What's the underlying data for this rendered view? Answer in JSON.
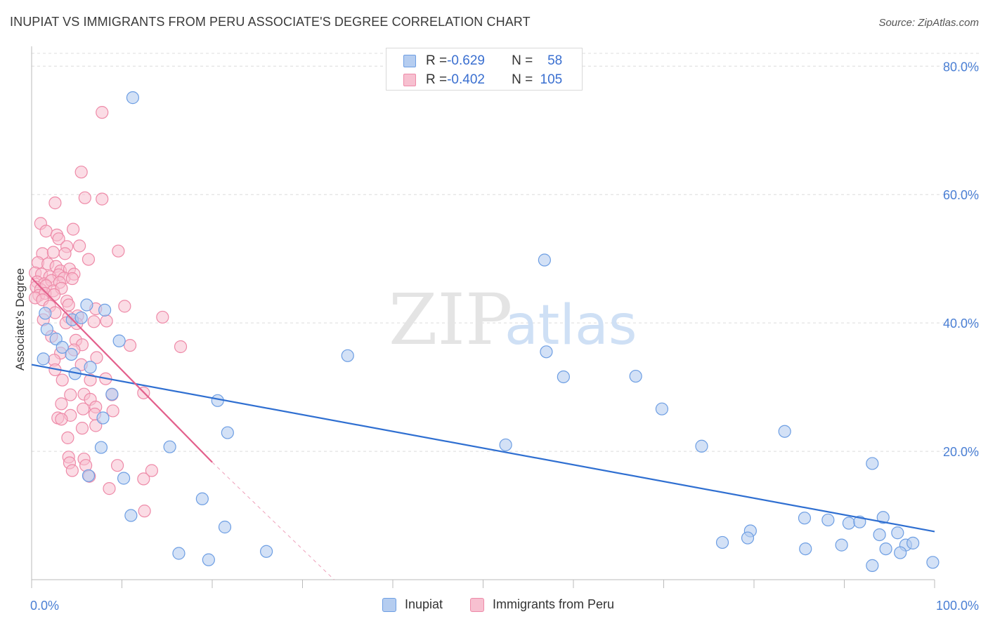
{
  "title": "INUPIAT VS IMMIGRANTS FROM PERU ASSOCIATE'S DEGREE CORRELATION CHART",
  "source": "Source: ZipAtlas.com",
  "watermark": {
    "zip": "ZIP",
    "atlas": "atlas"
  },
  "legend": {
    "series": [
      {
        "r_label": "R = ",
        "r_value": "-0.629",
        "n_label": "N = ",
        "n_value": "58"
      },
      {
        "r_label": "R = ",
        "r_value": "-0.402",
        "n_label": "N = ",
        "n_value": "105"
      }
    ]
  },
  "colors": {
    "blue_fill": "#b5cdf0",
    "blue_stroke": "#6d9ee3",
    "blue_line": "#2f6fd1",
    "pink_fill": "#f7c0d0",
    "pink_stroke": "#ee8aa8",
    "pink_line": "#e3608c",
    "grid": "#dcdcdc",
    "axis_text": "#4a7fd4"
  },
  "chart_data": {
    "type": "scatter",
    "title": "INUPIAT VS IMMIGRANTS FROM PERU ASSOCIATE'S DEGREE CORRELATION CHART",
    "xlabel": "",
    "ylabel": "Associate's Degree",
    "xlim": [
      0,
      100
    ],
    "ylim": [
      0,
      82
    ],
    "x_tick_labels": [
      "0.0%",
      "100.0%"
    ],
    "y_ticks": [
      20,
      40,
      60,
      80
    ],
    "y_tick_labels": [
      "20.0%",
      "40.0%",
      "60.0%",
      "80.0%"
    ],
    "series": [
      {
        "name": "Inupiat",
        "trend": {
          "x0": 0,
          "y0": 33.5,
          "x1": 100,
          "y1": 7.5
        },
        "points": [
          [
            11.2,
            75.1
          ],
          [
            56.8,
            49.8
          ],
          [
            1.5,
            41.5
          ],
          [
            6.1,
            42.8
          ],
          [
            8.1,
            42.0
          ],
          [
            4.5,
            40.5
          ],
          [
            5.5,
            40.8
          ],
          [
            1.7,
            39.0
          ],
          [
            2.7,
            37.5
          ],
          [
            3.4,
            36.2
          ],
          [
            9.7,
            37.2
          ],
          [
            1.3,
            34.4
          ],
          [
            4.4,
            35.1
          ],
          [
            6.5,
            33.1
          ],
          [
            4.8,
            32.1
          ],
          [
            35.0,
            34.9
          ],
          [
            57.0,
            35.5
          ],
          [
            58.9,
            31.6
          ],
          [
            66.9,
            31.7
          ],
          [
            8.9,
            28.9
          ],
          [
            20.6,
            27.9
          ],
          [
            69.8,
            26.6
          ],
          [
            7.9,
            25.2
          ],
          [
            21.7,
            22.9
          ],
          [
            83.4,
            23.1
          ],
          [
            7.7,
            20.6
          ],
          [
            15.3,
            20.7
          ],
          [
            52.5,
            21.0
          ],
          [
            74.2,
            20.8
          ],
          [
            6.3,
            16.2
          ],
          [
            10.2,
            15.8
          ],
          [
            93.1,
            18.1
          ],
          [
            18.9,
            12.6
          ],
          [
            11.0,
            10.0
          ],
          [
            21.4,
            8.2
          ],
          [
            85.6,
            9.6
          ],
          [
            88.2,
            9.3
          ],
          [
            90.5,
            8.8
          ],
          [
            91.7,
            9.0
          ],
          [
            94.3,
            9.7
          ],
          [
            79.6,
            7.6
          ],
          [
            79.3,
            6.5
          ],
          [
            76.5,
            5.8
          ],
          [
            93.9,
            7.0
          ],
          [
            95.9,
            7.3
          ],
          [
            85.7,
            4.8
          ],
          [
            89.7,
            5.4
          ],
          [
            94.6,
            4.8
          ],
          [
            96.8,
            5.4
          ],
          [
            96.2,
            4.2
          ],
          [
            97.6,
            5.7
          ],
          [
            16.3,
            4.1
          ],
          [
            26.0,
            4.4
          ],
          [
            19.6,
            3.1
          ],
          [
            93.1,
            2.2
          ],
          [
            99.8,
            2.7
          ]
        ]
      },
      {
        "name": "Immigrants from Peru",
        "trend": {
          "x0": 0,
          "y0": 47.0,
          "x1": 20.0,
          "y1": 18.3
        },
        "trend_extension": {
          "x0": 20.0,
          "y0": 18.3,
          "x1": 33.5,
          "y1": 0.0
        },
        "points": [
          [
            7.8,
            72.8
          ],
          [
            5.5,
            63.5
          ],
          [
            5.9,
            59.5
          ],
          [
            7.8,
            59.3
          ],
          [
            2.6,
            58.7
          ],
          [
            1.0,
            55.5
          ],
          [
            1.6,
            54.3
          ],
          [
            2.8,
            53.7
          ],
          [
            3.0,
            53.1
          ],
          [
            4.6,
            54.6
          ],
          [
            5.3,
            52.0
          ],
          [
            3.9,
            51.9
          ],
          [
            1.2,
            50.8
          ],
          [
            2.4,
            51.0
          ],
          [
            3.7,
            50.8
          ],
          [
            9.6,
            51.2
          ],
          [
            0.7,
            49.4
          ],
          [
            1.8,
            49.2
          ],
          [
            2.7,
            48.8
          ],
          [
            3.2,
            48.1
          ],
          [
            4.2,
            48.4
          ],
          [
            6.3,
            49.9
          ],
          [
            0.4,
            47.8
          ],
          [
            1.1,
            47.6
          ],
          [
            2.0,
            47.2
          ],
          [
            3.0,
            47.5
          ],
          [
            3.6,
            47.0
          ],
          [
            4.7,
            47.6
          ],
          [
            0.6,
            46.4
          ],
          [
            1.4,
            46.1
          ],
          [
            2.2,
            46.6
          ],
          [
            3.1,
            46.3
          ],
          [
            4.5,
            46.9
          ],
          [
            0.5,
            45.6
          ],
          [
            1.0,
            45.2
          ],
          [
            1.6,
            45.8
          ],
          [
            2.4,
            45.0
          ],
          [
            3.3,
            45.4
          ],
          [
            0.8,
            44.3
          ],
          [
            1.5,
            44.6
          ],
          [
            2.5,
            44.4
          ],
          [
            0.4,
            43.9
          ],
          [
            1.2,
            43.6
          ],
          [
            3.9,
            43.4
          ],
          [
            2.0,
            42.6
          ],
          [
            4.1,
            42.8
          ],
          [
            7.1,
            42.2
          ],
          [
            10.3,
            42.6
          ],
          [
            2.6,
            41.6
          ],
          [
            4.1,
            40.9
          ],
          [
            5.1,
            41.1
          ],
          [
            8.3,
            40.3
          ],
          [
            14.5,
            40.9
          ],
          [
            3.8,
            40.0
          ],
          [
            1.3,
            40.5
          ],
          [
            5.0,
            39.9
          ],
          [
            6.9,
            40.2
          ],
          [
            2.2,
            37.9
          ],
          [
            4.9,
            37.3
          ],
          [
            5.6,
            36.6
          ],
          [
            10.9,
            36.5
          ],
          [
            16.5,
            36.3
          ],
          [
            3.2,
            35.3
          ],
          [
            4.7,
            35.8
          ],
          [
            7.2,
            34.6
          ],
          [
            2.5,
            34.2
          ],
          [
            5.5,
            33.5
          ],
          [
            2.6,
            32.7
          ],
          [
            8.2,
            31.3
          ],
          [
            3.4,
            31.1
          ],
          [
            6.5,
            31.1
          ],
          [
            12.4,
            29.1
          ],
          [
            4.3,
            28.8
          ],
          [
            5.8,
            28.9
          ],
          [
            8.9,
            28.8
          ],
          [
            6.5,
            28.1
          ],
          [
            3.3,
            27.4
          ],
          [
            7.1,
            26.9
          ],
          [
            5.7,
            26.6
          ],
          [
            9.0,
            26.3
          ],
          [
            7.0,
            25.8
          ],
          [
            4.3,
            25.6
          ],
          [
            2.9,
            25.2
          ],
          [
            3.3,
            25.0
          ],
          [
            7.1,
            24.0
          ],
          [
            5.6,
            23.6
          ],
          [
            4.0,
            22.1
          ],
          [
            4.1,
            19.1
          ],
          [
            5.8,
            18.8
          ],
          [
            4.2,
            18.2
          ],
          [
            6.0,
            17.8
          ],
          [
            9.5,
            17.8
          ],
          [
            4.5,
            17.0
          ],
          [
            13.3,
            17.0
          ],
          [
            6.4,
            16.1
          ],
          [
            12.4,
            15.7
          ],
          [
            8.6,
            14.2
          ],
          [
            12.5,
            10.7
          ]
        ]
      }
    ]
  },
  "bottom_legend": [
    {
      "label": "Inupiat"
    },
    {
      "label": "Immigrants from Peru"
    }
  ]
}
